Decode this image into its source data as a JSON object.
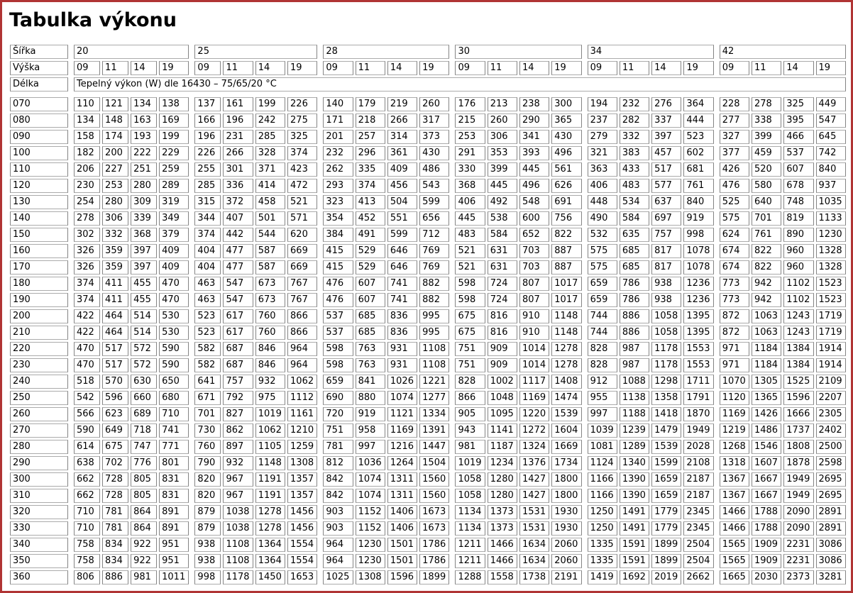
{
  "page": {
    "title": "Tabulka výkonu",
    "frame_color": "#b03434"
  },
  "table": {
    "corner_labels": {
      "width": "Šířka",
      "height": "Výška",
      "length": "Délka"
    },
    "heights": [
      "09",
      "11",
      "14",
      "19"
    ],
    "width_groups": [
      {
        "label": "20"
      },
      {
        "label": "25"
      },
      {
        "label": "28"
      },
      {
        "label": "30"
      },
      {
        "label": "34"
      },
      {
        "label": "42"
      }
    ],
    "unit_note": "Tepelný výkon (W) dle 16430 – 75/65/20 °C",
    "rows": [
      {
        "length": "070",
        "values": [
          110,
          121,
          134,
          138,
          137,
          161,
          199,
          226,
          140,
          179,
          219,
          260,
          176,
          213,
          238,
          300,
          194,
          232,
          276,
          364,
          228,
          278,
          325,
          449
        ]
      },
      {
        "length": "080",
        "values": [
          134,
          148,
          163,
          169,
          166,
          196,
          242,
          275,
          171,
          218,
          266,
          317,
          215,
          260,
          290,
          365,
          237,
          282,
          337,
          444,
          277,
          338,
          395,
          547
        ]
      },
      {
        "length": "090",
        "values": [
          158,
          174,
          193,
          199,
          196,
          231,
          285,
          325,
          201,
          257,
          314,
          373,
          253,
          306,
          341,
          430,
          279,
          332,
          397,
          523,
          327,
          399,
          466,
          645
        ]
      },
      {
        "length": "100",
        "values": [
          182,
          200,
          222,
          229,
          226,
          266,
          328,
          374,
          232,
          296,
          361,
          430,
          291,
          353,
          393,
          496,
          321,
          383,
          457,
          602,
          377,
          459,
          537,
          742
        ]
      },
      {
        "length": "110",
        "values": [
          206,
          227,
          251,
          259,
          255,
          301,
          371,
          423,
          262,
          335,
          409,
          486,
          330,
          399,
          445,
          561,
          363,
          433,
          517,
          681,
          426,
          520,
          607,
          840
        ]
      },
      {
        "length": "120",
        "values": [
          230,
          253,
          280,
          289,
          285,
          336,
          414,
          472,
          293,
          374,
          456,
          543,
          368,
          445,
          496,
          626,
          406,
          483,
          577,
          761,
          476,
          580,
          678,
          937
        ]
      },
      {
        "length": "130",
        "values": [
          254,
          280,
          309,
          319,
          315,
          372,
          458,
          521,
          323,
          413,
          504,
          599,
          406,
          492,
          548,
          691,
          448,
          534,
          637,
          840,
          525,
          640,
          748,
          1035
        ]
      },
      {
        "length": "140",
        "values": [
          278,
          306,
          339,
          349,
          344,
          407,
          501,
          571,
          354,
          452,
          551,
          656,
          445,
          538,
          600,
          756,
          490,
          584,
          697,
          919,
          575,
          701,
          819,
          1133
        ]
      },
      {
        "length": "150",
        "values": [
          302,
          332,
          368,
          379,
          374,
          442,
          544,
          620,
          384,
          491,
          599,
          712,
          483,
          584,
          652,
          822,
          532,
          635,
          757,
          998,
          624,
          761,
          890,
          1230
        ]
      },
      {
        "length": "160",
        "values": [
          326,
          359,
          397,
          409,
          404,
          477,
          587,
          669,
          415,
          529,
          646,
          769,
          521,
          631,
          703,
          887,
          575,
          685,
          817,
          1078,
          674,
          822,
          960,
          1328
        ]
      },
      {
        "length": "170",
        "values": [
          326,
          359,
          397,
          409,
          404,
          477,
          587,
          669,
          415,
          529,
          646,
          769,
          521,
          631,
          703,
          887,
          575,
          685,
          817,
          1078,
          674,
          822,
          960,
          1328
        ]
      },
      {
        "length": "180",
        "values": [
          374,
          411,
          455,
          470,
          463,
          547,
          673,
          767,
          476,
          607,
          741,
          882,
          598,
          724,
          807,
          1017,
          659,
          786,
          938,
          1236,
          773,
          942,
          1102,
          1523
        ]
      },
      {
        "length": "190",
        "values": [
          374,
          411,
          455,
          470,
          463,
          547,
          673,
          767,
          476,
          607,
          741,
          882,
          598,
          724,
          807,
          1017,
          659,
          786,
          938,
          1236,
          773,
          942,
          1102,
          1523
        ]
      },
      {
        "length": "200",
        "values": [
          422,
          464,
          514,
          530,
          523,
          617,
          760,
          866,
          537,
          685,
          836,
          995,
          675,
          816,
          910,
          1148,
          744,
          886,
          1058,
          1395,
          872,
          1063,
          1243,
          1719
        ]
      },
      {
        "length": "210",
        "values": [
          422,
          464,
          514,
          530,
          523,
          617,
          760,
          866,
          537,
          685,
          836,
          995,
          675,
          816,
          910,
          1148,
          744,
          886,
          1058,
          1395,
          872,
          1063,
          1243,
          1719
        ]
      },
      {
        "length": "220",
        "values": [
          470,
          517,
          572,
          590,
          582,
          687,
          846,
          964,
          598,
          763,
          931,
          1108,
          751,
          909,
          1014,
          1278,
          828,
          987,
          1178,
          1553,
          971,
          1184,
          1384,
          1914
        ]
      },
      {
        "length": "230",
        "values": [
          470,
          517,
          572,
          590,
          582,
          687,
          846,
          964,
          598,
          763,
          931,
          1108,
          751,
          909,
          1014,
          1278,
          828,
          987,
          1178,
          1553,
          971,
          1184,
          1384,
          1914
        ]
      },
      {
        "length": "240",
        "values": [
          518,
          570,
          630,
          650,
          641,
          757,
          932,
          1062,
          659,
          841,
          1026,
          1221,
          828,
          1002,
          1117,
          1408,
          912,
          1088,
          1298,
          1711,
          1070,
          1305,
          1525,
          2109
        ]
      },
      {
        "length": "250",
        "values": [
          542,
          596,
          660,
          680,
          671,
          792,
          975,
          1112,
          690,
          880,
          1074,
          1277,
          866,
          1048,
          1169,
          1474,
          955,
          1138,
          1358,
          1791,
          1120,
          1365,
          1596,
          2207
        ]
      },
      {
        "length": "260",
        "values": [
          566,
          623,
          689,
          710,
          701,
          827,
          1019,
          1161,
          720,
          919,
          1121,
          1334,
          905,
          1095,
          1220,
          1539,
          997,
          1188,
          1418,
          1870,
          1169,
          1426,
          1666,
          2305
        ]
      },
      {
        "length": "270",
        "values": [
          590,
          649,
          718,
          741,
          730,
          862,
          1062,
          1210,
          751,
          958,
          1169,
          1391,
          943,
          1141,
          1272,
          1604,
          1039,
          1239,
          1479,
          1949,
          1219,
          1486,
          1737,
          2402
        ]
      },
      {
        "length": "280",
        "values": [
          614,
          675,
          747,
          771,
          760,
          897,
          1105,
          1259,
          781,
          997,
          1216,
          1447,
          981,
          1187,
          1324,
          1669,
          1081,
          1289,
          1539,
          2028,
          1268,
          1546,
          1808,
          2500
        ]
      },
      {
        "length": "290",
        "values": [
          638,
          702,
          776,
          801,
          790,
          932,
          1148,
          1308,
          812,
          1036,
          1264,
          1504,
          1019,
          1234,
          1376,
          1734,
          1124,
          1340,
          1599,
          2108,
          1318,
          1607,
          1878,
          2598
        ]
      },
      {
        "length": "300",
        "values": [
          662,
          728,
          805,
          831,
          820,
          967,
          1191,
          1357,
          842,
          1074,
          1311,
          1560,
          1058,
          1280,
          1427,
          1800,
          1166,
          1390,
          1659,
          2187,
          1367,
          1667,
          1949,
          2695
        ]
      },
      {
        "length": "310",
        "values": [
          662,
          728,
          805,
          831,
          820,
          967,
          1191,
          1357,
          842,
          1074,
          1311,
          1560,
          1058,
          1280,
          1427,
          1800,
          1166,
          1390,
          1659,
          2187,
          1367,
          1667,
          1949,
          2695
        ]
      },
      {
        "length": "320",
        "values": [
          710,
          781,
          864,
          891,
          879,
          1038,
          1278,
          1456,
          903,
          1152,
          1406,
          1673,
          1134,
          1373,
          1531,
          1930,
          1250,
          1491,
          1779,
          2345,
          1466,
          1788,
          2090,
          2891
        ]
      },
      {
        "length": "330",
        "values": [
          710,
          781,
          864,
          891,
          879,
          1038,
          1278,
          1456,
          903,
          1152,
          1406,
          1673,
          1134,
          1373,
          1531,
          1930,
          1250,
          1491,
          1779,
          2345,
          1466,
          1788,
          2090,
          2891
        ]
      },
      {
        "length": "340",
        "values": [
          758,
          834,
          922,
          951,
          938,
          1108,
          1364,
          1554,
          964,
          1230,
          1501,
          1786,
          1211,
          1466,
          1634,
          2060,
          1335,
          1591,
          1899,
          2504,
          1565,
          1909,
          2231,
          3086
        ]
      },
      {
        "length": "350",
        "values": [
          758,
          834,
          922,
          951,
          938,
          1108,
          1364,
          1554,
          964,
          1230,
          1501,
          1786,
          1211,
          1466,
          1634,
          2060,
          1335,
          1591,
          1899,
          2504,
          1565,
          1909,
          2231,
          3086
        ]
      },
      {
        "length": "360",
        "values": [
          806,
          886,
          981,
          1011,
          998,
          1178,
          1450,
          1653,
          1025,
          1308,
          1596,
          1899,
          1288,
          1558,
          1738,
          2191,
          1419,
          1692,
          2019,
          2662,
          1665,
          2030,
          2373,
          3281
        ]
      }
    ]
  }
}
